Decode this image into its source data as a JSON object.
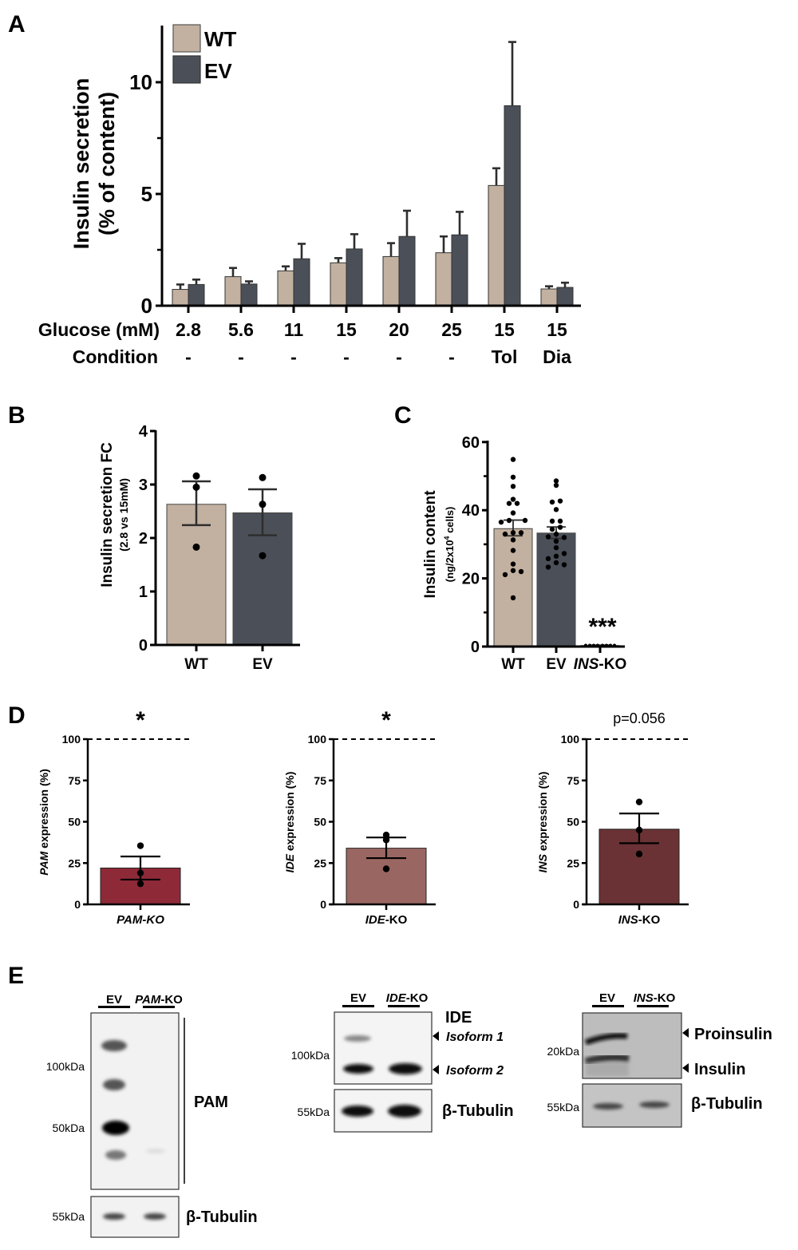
{
  "panels": {
    "A": {
      "letter": "A"
    },
    "B": {
      "letter": "B"
    },
    "C": {
      "letter": "C"
    },
    "D": {
      "letter": "D"
    },
    "E": {
      "letter": "E"
    }
  },
  "colors": {
    "wt": "#c2b1a0",
    "ev": "#4a4f58",
    "pam_ko": "#8e2a38",
    "ide_ko": "#9a6662",
    "ins_ko": "#6a3234",
    "axis": "#000000",
    "errorbar": "#2e2e2e"
  },
  "chart_data": [
    {
      "id": "A",
      "type": "bar",
      "title": "",
      "ylabel": "Insulin secretion",
      "ylabel2": "(% of content)",
      "ylim": [
        0,
        12.5
      ],
      "yticks": [
        0,
        5,
        10
      ],
      "yminorticks": [
        2.5,
        7.5
      ],
      "row1_label": "Glucose (mM)",
      "row2_label": "Condition",
      "categories": [
        "2.8",
        "5.6",
        "11",
        "15",
        "20",
        "25",
        "15",
        "15"
      ],
      "conditions": [
        "-",
        "-",
        "-",
        "-",
        "-",
        "-",
        "Tol",
        "Dia"
      ],
      "legend": [
        "WT",
        "EV"
      ],
      "legend_position": "top-left",
      "series": [
        {
          "name": "WT",
          "values": [
            0.73,
            1.3,
            1.56,
            1.92,
            2.2,
            2.37,
            5.38,
            0.75
          ],
          "sem_upper": [
            0.95,
            1.69,
            1.76,
            2.13,
            2.8,
            3.1,
            6.15,
            0.87
          ]
        },
        {
          "name": "EV",
          "values": [
            0.95,
            0.97,
            2.1,
            2.54,
            3.1,
            3.17,
            8.95,
            0.82
          ],
          "sem_upper": [
            1.17,
            1.09,
            2.77,
            3.2,
            4.25,
            4.2,
            11.8,
            1.03
          ]
        }
      ]
    },
    {
      "id": "B",
      "type": "bar",
      "ylabel": "Insulin secretion FC",
      "ylabel2": "(2.8 vs 15mM)",
      "ylim": [
        0,
        4
      ],
      "yticks": [
        0,
        1,
        2,
        3,
        4
      ],
      "categories": [
        "WT",
        "EV"
      ],
      "values": [
        2.63,
        2.47
      ],
      "sem_low": [
        2.24,
        2.05
      ],
      "sem_high": [
        3.06,
        2.91
      ],
      "points": [
        [
          3.16,
          2.95,
          1.83
        ],
        [
          3.13,
          2.63,
          1.67
        ]
      ]
    },
    {
      "id": "C",
      "type": "bar",
      "ylabel": "Insulin content",
      "ylabel2_pre": "(ng/2x10",
      "ylabel2_sup": "4",
      "ylabel2_post": " cells)",
      "ylim": [
        0,
        60
      ],
      "yticks": [
        0,
        20,
        40,
        60
      ],
      "yminorticks": [
        10,
        30,
        50
      ],
      "categories": [
        "WT",
        "EV",
        "INS-KO"
      ],
      "category_italic_part": [
        "",
        "",
        "INS"
      ],
      "category_rest": [
        "WT",
        "EV",
        "-KO"
      ],
      "values": [
        34.6,
        33.3,
        0.3
      ],
      "sem_low": [
        32.5,
        31.7,
        0.2
      ],
      "sem_high": [
        37.1,
        35.1,
        0.4
      ],
      "annotation": "***",
      "points": [
        [
          54.9,
          49.7,
          47.0,
          43.2,
          42.0,
          42.0,
          39.2,
          36.5,
          37.0,
          37.0,
          33.0,
          33.4,
          33.4,
          31.3,
          28.2,
          24.2,
          22.3,
          22.0,
          21.1,
          14.3
        ],
        [
          48.6,
          47.3,
          42.4,
          42.7,
          40.2,
          36.8,
          36.8,
          34.4,
          35.0,
          33.0,
          32.2,
          32.0,
          30.9,
          29.0,
          27.3,
          26.5,
          25.8,
          24.6,
          24.0,
          23.3
        ],
        [
          0.3,
          0.3,
          0.3,
          0.3,
          0.3,
          0.3,
          0.3,
          0.3
        ]
      ]
    },
    {
      "id": "D1",
      "type": "bar",
      "ylabel_italic": "PAM",
      "ylabel_rest": " expression (%)",
      "ylim": [
        0,
        100
      ],
      "yticks": [
        0,
        25,
        50,
        75,
        100
      ],
      "reference_line": 100,
      "category_italic": "PAM-KO",
      "category_rest": "",
      "value": 22,
      "sem_low": 15,
      "sem_high": 29,
      "points": [
        35.5,
        19,
        12.5
      ],
      "annotation": "*"
    },
    {
      "id": "D2",
      "type": "bar",
      "ylabel_italic": "IDE",
      "ylabel_rest": " expression (%)",
      "ylim": [
        0,
        100
      ],
      "yticks": [
        0,
        25,
        50,
        75,
        100
      ],
      "reference_line": 100,
      "category_italic": "IDE",
      "category_rest": "-KO",
      "value": 34,
      "sem_low": 28,
      "sem_high": 40.5,
      "points": [
        42,
        39,
        21.5
      ],
      "annotation": "*"
    },
    {
      "id": "D3",
      "type": "bar",
      "ylabel_italic": "INS",
      "ylabel_rest": " expression (%)",
      "ylim": [
        0,
        100
      ],
      "yticks": [
        0,
        25,
        50,
        75,
        100
      ],
      "reference_line": 100,
      "category_italic": "INS",
      "category_rest": "-KO",
      "value": 45.5,
      "sem_low": 37,
      "sem_high": 55,
      "points": [
        62,
        45,
        30.5
      ],
      "annotation": "p=0.056"
    }
  ],
  "blots": {
    "pam": {
      "lane1": "EV",
      "lane2_italic": "PAM",
      "lane2_rest": "-KO",
      "markers": [
        "100kDa",
        "50kDa"
      ],
      "label": "PAM",
      "loading_marker": "55kDa",
      "loading_label": "β-Tubulin"
    },
    "ide": {
      "lane1": "EV",
      "lane2_italic": "IDE",
      "lane2_rest": "-KO",
      "title": "IDE",
      "markers": [
        "100kDa"
      ],
      "band_labels": [
        "Isoform 1",
        "Isoform 2"
      ],
      "loading_marker": "55kDa",
      "loading_label": "β-Tubulin"
    },
    "ins": {
      "lane1": "EV",
      "lane2_italic": "INS",
      "lane2_rest": "-KO",
      "markers": [
        "20kDa"
      ],
      "band_labels": [
        "Proinsulin",
        "Insulin"
      ],
      "loading_marker": "55kDa",
      "loading_label": "β-Tubulin"
    }
  }
}
